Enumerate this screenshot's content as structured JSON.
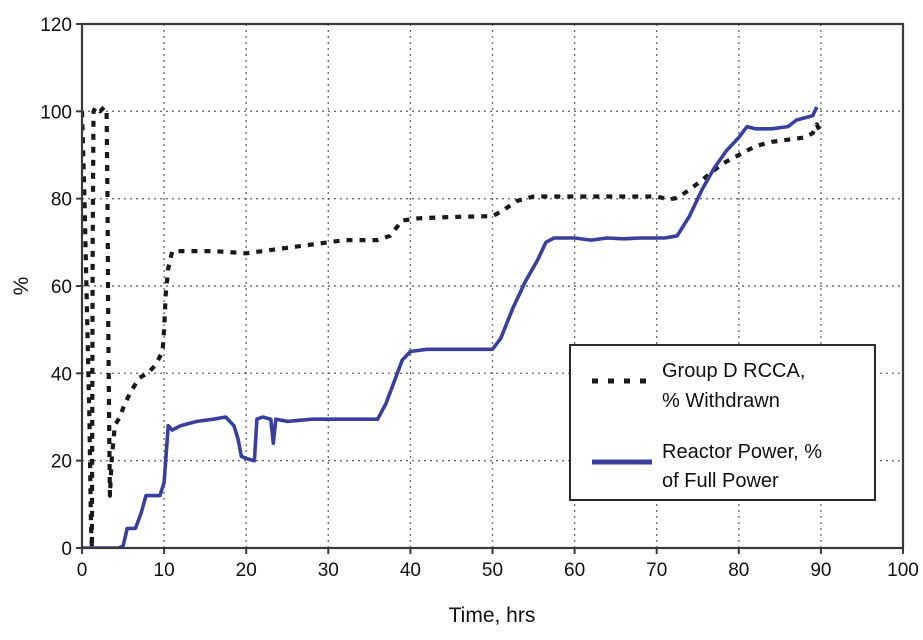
{
  "chart_data": {
    "type": "line",
    "xlabel": "Time, hrs",
    "ylabel": "%",
    "xlim": [
      0,
      100
    ],
    "ylim": [
      0,
      120
    ],
    "x_ticks": [
      "0",
      "10",
      "20",
      "30",
      "40",
      "50",
      "60",
      "70",
      "80",
      "90",
      "100"
    ],
    "y_ticks": [
      "0",
      "20",
      "40",
      "60",
      "80",
      "100",
      "120"
    ],
    "grid": true,
    "legend_position": "lower-right",
    "series": [
      {
        "name": "Group D RCCA, % Withdrawn",
        "legend_lines": [
          "Group D RCCA,",
          "% Withdrawn"
        ],
        "style": "dotted",
        "color": "#1a1a1a",
        "points": [
          [
            0,
            100
          ],
          [
            0.3,
            80
          ],
          [
            0.6,
            55
          ],
          [
            0.9,
            30
          ],
          [
            1.1,
            5
          ],
          [
            1.2,
            0
          ],
          [
            1.3,
            70
          ],
          [
            1.4,
            100
          ],
          [
            1.7,
            101
          ],
          [
            2.2,
            100
          ],
          [
            2.7,
            101
          ],
          [
            3.0,
            100
          ],
          [
            3.1,
            80
          ],
          [
            3.2,
            50
          ],
          [
            3.3,
            30
          ],
          [
            3.4,
            12
          ],
          [
            3.6,
            20
          ],
          [
            4.0,
            28
          ],
          [
            4.6,
            30
          ],
          [
            5.2,
            33
          ],
          [
            6.0,
            36
          ],
          [
            7.0,
            39
          ],
          [
            8.0,
            40
          ],
          [
            9.0,
            42
          ],
          [
            9.8,
            45
          ],
          [
            10.0,
            50
          ],
          [
            10.2,
            58
          ],
          [
            10.5,
            64
          ],
          [
            11.0,
            68
          ],
          [
            13.0,
            68
          ],
          [
            16.0,
            68
          ],
          [
            20.0,
            67.5
          ],
          [
            24.0,
            68.5
          ],
          [
            28.0,
            69.5
          ],
          [
            32.0,
            70.5
          ],
          [
            36.0,
            70.5
          ],
          [
            37.5,
            71.5
          ],
          [
            39.0,
            75
          ],
          [
            41.0,
            75.5
          ],
          [
            45.0,
            75.8
          ],
          [
            50.0,
            76
          ],
          [
            51.0,
            77
          ],
          [
            53.0,
            79.5
          ],
          [
            55.0,
            80.5
          ],
          [
            58.0,
            80.5
          ],
          [
            62.0,
            80.5
          ],
          [
            66.0,
            80.5
          ],
          [
            70.0,
            80.5
          ],
          [
            71.5,
            79.8
          ],
          [
            72.5,
            80.2
          ],
          [
            74.0,
            82
          ],
          [
            76.0,
            85
          ],
          [
            78.0,
            88
          ],
          [
            79.0,
            89
          ],
          [
            80.0,
            90
          ],
          [
            82.0,
            92
          ],
          [
            84.0,
            93
          ],
          [
            86.0,
            93.5
          ],
          [
            88.0,
            94
          ],
          [
            89.0,
            95
          ],
          [
            89.5,
            97
          ],
          [
            90.0,
            95
          ]
        ]
      },
      {
        "name": "Reactor Power, % of Full Power",
        "legend_lines": [
          "Reactor Power, %",
          "of Full Power"
        ],
        "style": "solid",
        "color": "#3a3f9e",
        "points": [
          [
            0,
            0
          ],
          [
            4.5,
            0
          ],
          [
            5.0,
            0.5
          ],
          [
            5.5,
            4.5
          ],
          [
            6.5,
            4.5
          ],
          [
            7.2,
            8
          ],
          [
            7.8,
            12
          ],
          [
            9.5,
            12
          ],
          [
            10.0,
            15
          ],
          [
            10.5,
            28
          ],
          [
            11.0,
            27
          ],
          [
            12.0,
            28
          ],
          [
            14.0,
            29
          ],
          [
            16.0,
            29.5
          ],
          [
            17.5,
            30
          ],
          [
            18.5,
            28
          ],
          [
            19.0,
            25
          ],
          [
            19.4,
            21
          ],
          [
            20.0,
            20.5
          ],
          [
            21.0,
            20
          ],
          [
            21.3,
            29.5
          ],
          [
            22.0,
            30
          ],
          [
            23.0,
            29.5
          ],
          [
            23.3,
            24
          ],
          [
            23.6,
            29.5
          ],
          [
            25.0,
            29
          ],
          [
            28.0,
            29.5
          ],
          [
            32.0,
            29.5
          ],
          [
            36.0,
            29.5
          ],
          [
            37.0,
            33
          ],
          [
            38.0,
            38
          ],
          [
            39.0,
            43
          ],
          [
            40.0,
            45
          ],
          [
            42.0,
            45.5
          ],
          [
            46.0,
            45.5
          ],
          [
            50.0,
            45.5
          ],
          [
            51.0,
            48
          ],
          [
            52.5,
            55
          ],
          [
            54.0,
            61
          ],
          [
            55.5,
            66
          ],
          [
            56.5,
            70
          ],
          [
            57.5,
            71
          ],
          [
            60.0,
            71
          ],
          [
            62.0,
            70.5
          ],
          [
            64.0,
            71
          ],
          [
            66.0,
            70.8
          ],
          [
            68.0,
            71
          ],
          [
            71.0,
            71
          ],
          [
            72.5,
            71.5
          ],
          [
            74.0,
            76
          ],
          [
            75.5,
            82
          ],
          [
            77.0,
            87
          ],
          [
            78.5,
            91
          ],
          [
            80.0,
            94
          ],
          [
            81.0,
            96.5
          ],
          [
            82.0,
            96
          ],
          [
            84.0,
            96
          ],
          [
            86.0,
            96.5
          ],
          [
            87.0,
            98
          ],
          [
            88.0,
            98.5
          ],
          [
            89.0,
            99
          ],
          [
            89.5,
            101
          ]
        ]
      }
    ]
  }
}
